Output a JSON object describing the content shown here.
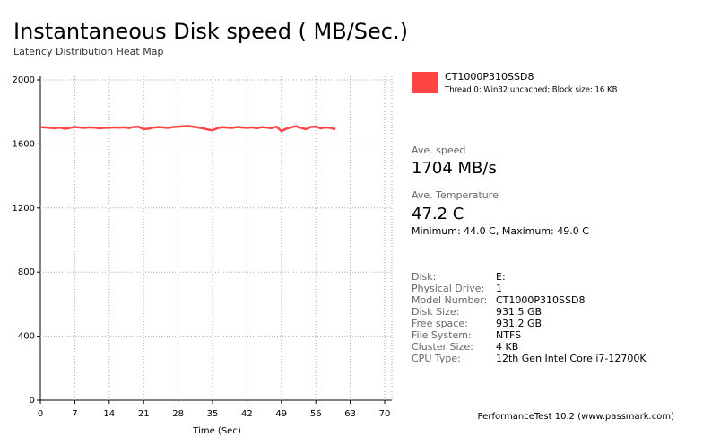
{
  "chart_data": {
    "type": "line",
    "title": "Instantaneous Disk speed ( MB/Sec.)",
    "subtitle": "Latency Distribution Heat Map",
    "x_label": "Time (Sec)",
    "x": [
      0,
      1,
      2,
      3,
      4,
      5,
      6,
      7,
      8,
      9,
      10,
      11,
      12,
      13,
      14,
      15,
      16,
      17,
      18,
      19,
      20,
      21,
      22,
      23,
      24,
      25,
      26,
      27,
      28,
      29,
      30,
      31,
      32,
      33,
      34,
      35,
      36,
      37,
      38,
      39,
      40,
      41,
      42,
      43,
      44,
      45,
      46,
      47,
      48,
      49,
      50,
      51,
      52,
      53,
      54,
      55,
      56,
      57,
      58,
      59,
      60
    ],
    "series": [
      {
        "name": "CT1000P310SSD8",
        "color": "#ff4444",
        "values": [
          1705,
          1703,
          1700,
          1698,
          1702,
          1695,
          1700,
          1706,
          1703,
          1700,
          1704,
          1702,
          1698,
          1700,
          1701,
          1703,
          1702,
          1704,
          1700,
          1706,
          1707,
          1693,
          1695,
          1702,
          1705,
          1703,
          1700,
          1706,
          1708,
          1710,
          1712,
          1708,
          1703,
          1698,
          1690,
          1685,
          1698,
          1705,
          1702,
          1700,
          1706,
          1703,
          1700,
          1704,
          1698,
          1705,
          1702,
          1698,
          1708,
          1680,
          1695,
          1705,
          1710,
          1700,
          1692,
          1706,
          1708,
          1698,
          1703,
          1700,
          1692
        ]
      }
    ],
    "legend_note": "Thread 0: Win32 uncached; Block size: 16 KB",
    "xlim": [
      0,
      70
    ],
    "xticks": [
      0,
      7,
      14,
      21,
      28,
      35,
      42,
      49,
      56,
      63,
      70
    ],
    "ylim": [
      0,
      2000
    ],
    "yticks": [
      0,
      400,
      800,
      1200,
      1600,
      2000
    ],
    "grid": true
  },
  "panel": {
    "speed_label": "Ave. speed",
    "speed_value": "1704 MB/s",
    "temp_label": "Ave. Temperature",
    "temp_value": "47.2 C",
    "temp_range": "Minimum: 44.0 C, Maximum: 49.0 C",
    "info": [
      [
        "Disk:",
        "E:"
      ],
      [
        "Physical Drive:",
        "1"
      ],
      [
        "Model Number:",
        "CT1000P310SSD8"
      ],
      [
        "Disk Size:",
        "931.5 GB"
      ],
      [
        "Free space:",
        "931.2 GB"
      ],
      [
        "File System:",
        "NTFS"
      ],
      [
        "Cluster Size:",
        "4 KB"
      ],
      [
        "CPU Type:",
        "12th Gen Intel Core i7-12700K"
      ]
    ],
    "footer": "PerformanceTest 10.2 (www.passmark.com)"
  }
}
